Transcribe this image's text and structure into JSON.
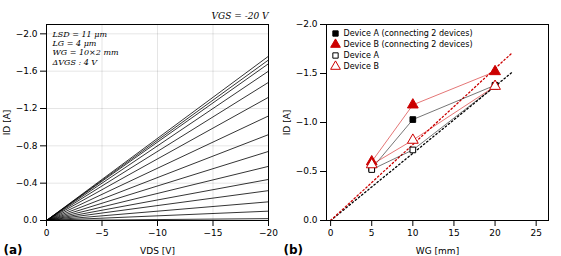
{
  "chart_data": [
    {
      "type": "line",
      "title": "(a)",
      "xlabel": "VDS [V]",
      "ylabel": "ID [A]",
      "color": "#000000",
      "x": [
        0,
        -20
      ],
      "series": [
        {
          "values": [
            0,
            -0.02
          ]
        },
        {
          "values": [
            0,
            -0.1
          ]
        },
        {
          "values": [
            0,
            -0.2
          ]
        },
        {
          "values": [
            0,
            -0.32
          ]
        },
        {
          "values": [
            0,
            -0.44
          ]
        },
        {
          "values": [
            0,
            -0.58
          ]
        },
        {
          "values": [
            0,
            -0.74
          ]
        },
        {
          "values": [
            0,
            -0.92
          ]
        },
        {
          "values": [
            0,
            -1.12
          ]
        },
        {
          "values": [
            0,
            -1.32
          ]
        },
        {
          "values": [
            0,
            -1.48
          ]
        },
        {
          "values": [
            0,
            -1.6
          ]
        },
        {
          "values": [
            0,
            -1.68
          ]
        },
        {
          "values": [
            0,
            -1.72
          ]
        },
        {
          "values": [
            0,
            -1.76
          ]
        }
      ],
      "xlim": [
        0,
        -20
      ],
      "ylim": [
        0,
        -2.1
      ],
      "xticks": [
        0,
        -5,
        -10,
        -15,
        -20
      ],
      "yticks": [
        {
          "value": 0,
          "label": "0.0"
        },
        -0.4,
        -0.8,
        -1.2,
        -1.6,
        {
          "value": -2,
          "label": "−2.0"
        }
      ],
      "grid": true,
      "annotations": [
        "VGS = -20 V",
        "LSD = 11 μm",
        "LG = 4 μm",
        "WG = 10×2 mm",
        "ΔVGS : 4 V"
      ]
    },
    {
      "type": "scatter",
      "title": "(b)",
      "xlabel": "WG [mm]",
      "ylabel": "ID [A]",
      "series": [
        {
          "type": "line",
          "line_style": "dotted",
          "color": "#000000",
          "x": [
            0,
            22
          ],
          "values": [
            0,
            -1.507
          ]
        },
        {
          "type": "line",
          "line_style": "dotted",
          "color": "#cc0000",
          "x": [
            0,
            22
          ],
          "values": [
            0,
            -1.705
          ]
        },
        {
          "name": "Device A (connecting 2 devices)",
          "type": "line",
          "line_style": "solid",
          "marker": "square",
          "color": "#000000",
          "x": [
            5,
            10,
            20
          ],
          "values": [
            -0.53,
            -1.03,
            -1.38
          ]
        },
        {
          "name": "Device B (connecting 2 devices)",
          "type": "line",
          "line_style": "solid",
          "marker": "triangle",
          "color": "#cc0000",
          "x": [
            5,
            10,
            20
          ],
          "values": [
            -0.6,
            -1.18,
            -1.52
          ]
        },
        {
          "name": "Device A",
          "type": "line",
          "line_style": "solid",
          "marker": "open-square",
          "color": "#000000",
          "x": [
            5,
            10,
            20
          ],
          "values": [
            -0.52,
            -0.72,
            -1.37
          ]
        },
        {
          "name": "Device B",
          "type": "line",
          "line_style": "solid",
          "marker": "open-triangle",
          "color": "#cc0000",
          "x": [
            5,
            10,
            20
          ],
          "values": [
            -0.57,
            -0.82,
            -1.37
          ]
        }
      ],
      "xlim": [
        -0.5,
        26.5
      ],
      "ylim": [
        0.0,
        -2.0
      ],
      "xticks": [
        0,
        5,
        10,
        15,
        20,
        25
      ],
      "yticks": [
        {
          "value": 0,
          "label": "0.0"
        },
        -0.5,
        {
          "value": -1,
          "label": "−1.0"
        },
        -1.5,
        {
          "value": -2,
          "label": "−2.0"
        }
      ],
      "grid": false,
      "legend": "upper left"
    }
  ]
}
